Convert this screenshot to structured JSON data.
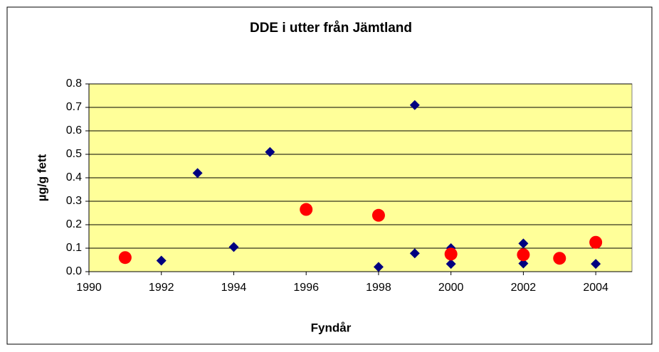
{
  "chart_data": {
    "type": "scatter",
    "title": "DDE i utter från Jämtland",
    "x_label": "Fyndår",
    "y_label": "µg/g fett",
    "series": [
      {
        "color": "#000080",
        "marker": "diamond",
        "x": [
          1992,
          1993,
          1994,
          1995,
          1998,
          1999,
          1999,
          2000,
          2000,
          2002,
          2002,
          2004
        ],
        "values": [
          0.047,
          0.42,
          0.105,
          0.51,
          0.02,
          0.71,
          0.078,
          0.1,
          0.033,
          0.12,
          0.035,
          0.033
        ]
      },
      {
        "color": "#ff0000",
        "marker": "circle",
        "x": [
          1991,
          1996,
          1998,
          2000,
          2002,
          2003,
          2004
        ],
        "values": [
          0.06,
          0.265,
          0.24,
          0.075,
          0.072,
          0.057,
          0.125
        ]
      }
    ],
    "xlim": [
      1990,
      2005
    ],
    "xticks": [
      1990,
      1992,
      1994,
      1996,
      1998,
      2000,
      2002,
      2004
    ],
    "ylim": [
      0,
      0.8
    ],
    "yticks": [
      {
        "value": 0,
        "label": "0.0"
      },
      0.1,
      0.2,
      0.3,
      0.4,
      0.5,
      0.6,
      0.7,
      0.8
    ],
    "grid": true,
    "plot_background": "#ffff99"
  }
}
